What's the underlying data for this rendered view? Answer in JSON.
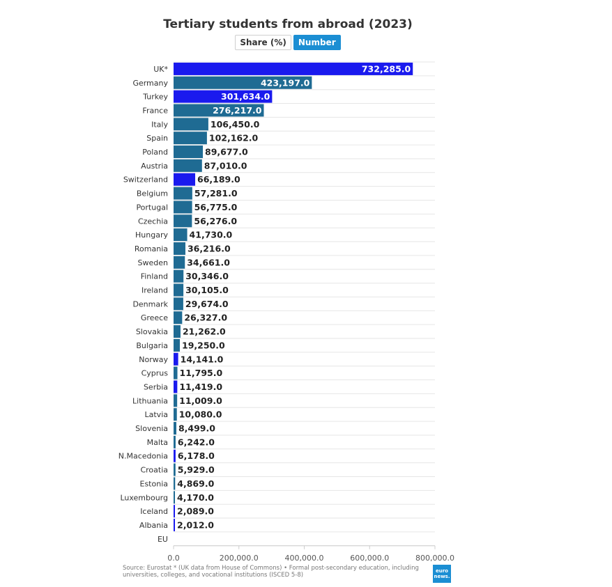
{
  "title": "Tertiary students from abroad (2023)",
  "toggles": [
    {
      "label": "Share (%)",
      "active": false
    },
    {
      "label": "Number",
      "active": true
    }
  ],
  "source": "Source: Eurostat * (UK data from House of Commons) • Formal post-secondary education, including universities, colleges, and vocational institutions (ISCED 5-8)",
  "logo_text": "euro news.",
  "colors": {
    "eu": "#1f6b93",
    "non_eu": "#1a1aee",
    "grid": "#e6e6e6"
  },
  "chart_data": {
    "type": "bar",
    "orientation": "horizontal",
    "title": "Tertiary students from abroad (2023)",
    "xlim": [
      0,
      800000
    ],
    "xticks": [
      "0.0",
      "200,000.0",
      "400,000.0",
      "600,000.0",
      "800,000.0"
    ],
    "grid": true,
    "categories": [
      "UK*",
      "Germany",
      "Turkey",
      "France",
      "Italy",
      "Spain",
      "Poland",
      "Austria",
      "Switzerland",
      "Belgium",
      "Portugal",
      "Czechia",
      "Hungary",
      "Romania",
      "Sweden",
      "Finland",
      "Ireland",
      "Denmark",
      "Greece",
      "Slovakia",
      "Bulgaria",
      "Norway",
      "Cyprus",
      "Serbia",
      "Lithuania",
      "Latvia",
      "Slovenia",
      "Malta",
      "N.Macedonia",
      "Croatia",
      "Estonia",
      "Luxembourg",
      "Iceland",
      "Albania",
      "EU"
    ],
    "values": [
      732285,
      423197,
      301634,
      276217,
      106450,
      102162,
      89677,
      87010,
      66189,
      57281,
      56775,
      56276,
      41730,
      36216,
      34661,
      30346,
      30105,
      29674,
      26327,
      21262,
      19250,
      14141,
      11795,
      11419,
      11009,
      10080,
      8499,
      6242,
      6178,
      5929,
      4869,
      4170,
      2089,
      2012,
      null
    ],
    "labels": [
      "732,285.0",
      "423,197.0",
      "301,634.0",
      "276,217.0",
      "106,450.0",
      "102,162.0",
      "89,677.0",
      "87,010.0",
      "66,189.0",
      "57,281.0",
      "56,775.0",
      "56,276.0",
      "41,730.0",
      "36,216.0",
      "34,661.0",
      "30,346.0",
      "30,105.0",
      "29,674.0",
      "26,327.0",
      "21,262.0",
      "19,250.0",
      "14,141.0",
      "11,795.0",
      "11,419.0",
      "11,009.0",
      "10,080.0",
      "8,499.0",
      "6,242.0",
      "6,178.0",
      "5,929.0",
      "4,869.0",
      "4,170.0",
      "2,089.0",
      "2,012.0",
      ""
    ],
    "highlight": [
      "UK*",
      "Turkey",
      "Switzerland",
      "Norway",
      "Serbia",
      "N.Macedonia",
      "Iceland",
      "Albania"
    ]
  }
}
